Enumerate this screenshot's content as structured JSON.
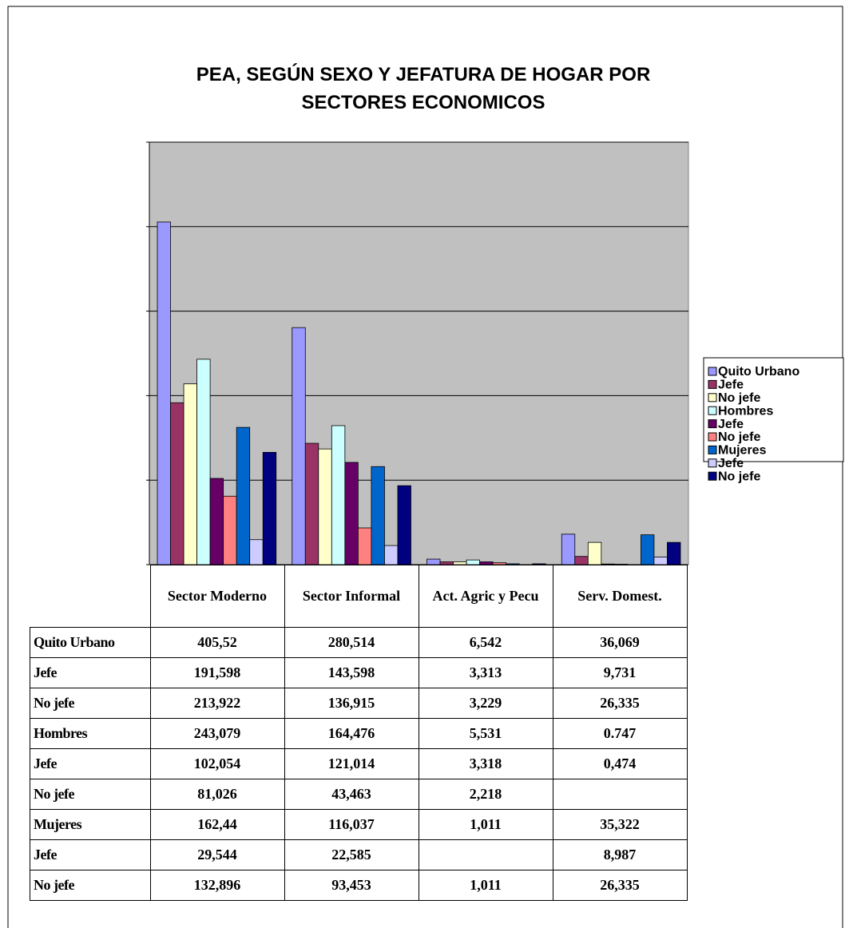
{
  "chart_data": {
    "type": "bar",
    "title": "PEA, SEGÚN SEXO Y JEFATURA DE HOGAR POR SECTORES ECONOMICOS",
    "categories": [
      "Sector Moderno",
      "Sector Informal",
      "Act. Agric y Pecu",
      "Serv. Domest."
    ],
    "ylim": [
      0,
      500
    ],
    "yticks": [
      0,
      100,
      200,
      300,
      400,
      500
    ],
    "grid": true,
    "legend": "right",
    "series": [
      {
        "name": "Quito Urbano",
        "color": "#9999ff",
        "values": [
          405.52,
          280.514,
          6.542,
          36.069
        ],
        "value_labels": [
          "405,52",
          "280,514",
          "6,542",
          "36,069"
        ]
      },
      {
        "name": "Jefe",
        "color": "#993366",
        "values": [
          191.598,
          143.598,
          3.313,
          9.731
        ],
        "value_labels": [
          "191,598",
          "143,598",
          "3,313",
          "9,731"
        ]
      },
      {
        "name": "No jefe",
        "color": "#ffffcc",
        "values": [
          213.922,
          136.915,
          3.229,
          26.335
        ],
        "value_labels": [
          "213,922",
          "136,915",
          "3,229",
          "26,335"
        ]
      },
      {
        "name": "Hombres",
        "color": "#ccffff",
        "values": [
          243.079,
          164.476,
          5.531,
          0.747
        ],
        "value_labels": [
          "243,079",
          "164,476",
          "5,531",
          "0.747"
        ]
      },
      {
        "name": "Jefe",
        "color": "#660066",
        "values": [
          102.054,
          121.014,
          3.318,
          0.474
        ],
        "value_labels": [
          "102,054",
          "121,014",
          "3,318",
          "0,474"
        ]
      },
      {
        "name": "No jefe",
        "color": "#ff8080",
        "values": [
          81.026,
          43.463,
          2.218,
          null
        ],
        "value_labels": [
          "81,026",
          "43,463",
          "2,218",
          null
        ]
      },
      {
        "name": "Mujeres",
        "color": "#0066cc",
        "values": [
          162.44,
          116.037,
          1.011,
          35.322
        ],
        "value_labels": [
          "162,44",
          "116,037",
          "1,011",
          "35,322"
        ]
      },
      {
        "name": "Jefe",
        "color": "#ccccff",
        "values": [
          29.544,
          22.585,
          null,
          8.987
        ],
        "value_labels": [
          "29,544",
          "22,585",
          null,
          "8,987"
        ]
      },
      {
        "name": "No jefe",
        "color": "#000080",
        "values": [
          132.896,
          93.453,
          1.011,
          26.335
        ],
        "value_labels": [
          "132,896",
          "93,453",
          "1,011",
          "26,335"
        ]
      }
    ]
  }
}
